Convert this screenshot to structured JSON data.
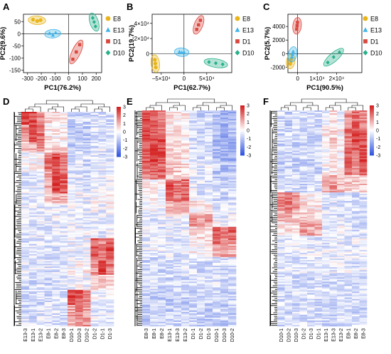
{
  "colors": {
    "E8": "#e8b418",
    "E13": "#3fb4e8",
    "D1": "#d9483f",
    "D10": "#27b08a",
    "heat_low": "#3255e0",
    "heat_mid": "#ffffff",
    "heat_high": "#d42020"
  },
  "legend": {
    "marker_icons": [
      "circle-icon",
      "triangle-icon",
      "square-icon",
      "diamond-icon"
    ]
  },
  "chart_data": [
    {
      "panel": "A",
      "type": "scatter",
      "xlabel": "PC1(76.2%)",
      "ylabel": "PC2(9.6%)",
      "xlim": [
        -330,
        240
      ],
      "ylim": [
        -160,
        80
      ],
      "xticks": [
        -300,
        -200,
        -100,
        0,
        100,
        200
      ],
      "xtick_labels": [
        "-300",
        "-200",
        "-100",
        "0",
        "100",
        "200"
      ],
      "yticks": [
        50,
        0,
        -50,
        -100,
        -150
      ],
      "ytick_labels": [
        "50",
        "0",
        "-50",
        "-100",
        "-150"
      ],
      "legend": [
        "E8",
        "E13",
        "D1",
        "D10"
      ],
      "series": [
        {
          "name": "E8",
          "marker": "circle",
          "x": [
            -260,
            -230,
            -205
          ],
          "y": [
            58,
            52,
            56
          ]
        },
        {
          "name": "E13",
          "marker": "triangle",
          "x": [
            -140,
            -115,
            -95
          ],
          "y": [
            2,
            -6,
            4
          ]
        },
        {
          "name": "D1",
          "marker": "square",
          "x": [
            30,
            55,
            80
          ],
          "y": [
            -105,
            -75,
            -45
          ]
        },
        {
          "name": "D10",
          "marker": "diamond",
          "x": [
            175,
            185,
            195
          ],
          "y": [
            65,
            48,
            30
          ]
        }
      ]
    },
    {
      "panel": "B",
      "type": "scatter",
      "xlabel": "PC1(62.7%)",
      "ylabel": "PC2(19.7%)",
      "xlim": [
        -70000,
        105000
      ],
      "ylim": [
        -25000,
        52000
      ],
      "xticks": [
        -50000,
        0,
        50000
      ],
      "xtick_labels": [
        "−5×10⁴",
        "0",
        "5×10⁴"
      ],
      "yticks": [
        40000,
        20000,
        0
      ],
      "ytick_labels": [
        "4×10⁴",
        "2×10⁴",
        "0"
      ],
      "legend": [
        "E8",
        "E13",
        "D1",
        "D10"
      ],
      "series": [
        {
          "name": "E8",
          "marker": "circle",
          "x": [
            -64000,
            -63000,
            -62000
          ],
          "y": [
            -8000,
            -13000,
            -18000
          ]
        },
        {
          "name": "E13",
          "marker": "triangle",
          "x": [
            -10000,
            -5000,
            0
          ],
          "y": [
            2500,
            1500,
            2000
          ]
        },
        {
          "name": "D1",
          "marker": "square",
          "x": [
            28000,
            32000,
            36000
          ],
          "y": [
            32000,
            38000,
            44000
          ]
        },
        {
          "name": "D10",
          "marker": "diamond",
          "x": [
            55000,
            70000,
            85000
          ],
          "y": [
            -11000,
            -12500,
            -14000
          ]
        }
      ]
    },
    {
      "panel": "C",
      "type": "scatter",
      "xlabel": "PC1(90.5%)",
      "ylabel": "PC2(5.7%)",
      "xlim": [
        -5000,
        33000
      ],
      "ylim": [
        -2800,
        5800
      ],
      "xticks": [
        0,
        10000,
        20000
      ],
      "xtick_labels": [
        "0",
        "1×10⁴",
        "2×10⁴"
      ],
      "yticks": [
        4000,
        2000,
        0,
        -2000
      ],
      "ytick_labels": [
        "4000",
        "2000",
        "0",
        "-2000"
      ],
      "legend": [
        "E8",
        "E13",
        "D1",
        "D10"
      ],
      "series": [
        {
          "name": "E8",
          "marker": "circle",
          "x": [
            -3800,
            -3600,
            -3400
          ],
          "y": [
            -1500,
            -1150,
            -800
          ]
        },
        {
          "name": "E13",
          "marker": "triangle",
          "x": [
            -2900,
            -2600,
            -2300
          ],
          "y": [
            -500,
            -100,
            300
          ]
        },
        {
          "name": "D1",
          "marker": "square",
          "x": [
            -500,
            -300,
            -100
          ],
          "y": [
            3600,
            4100,
            4600
          ]
        },
        {
          "name": "D10",
          "marker": "diamond",
          "x": [
            15500,
            18500,
            21500
          ],
          "y": [
            -1300,
            -500,
            200
          ]
        }
      ]
    },
    {
      "panel": "D",
      "type": "heatmap",
      "columns": [
        "E13-3",
        "E13-1",
        "E13-2",
        "E8-1",
        "E8-2",
        "E8-3",
        "D10-1",
        "D10-3",
        "D10-2",
        "D1-2",
        "D1-1",
        "D1-3"
      ],
      "colorbar_ticks": [
        3,
        2,
        1,
        0,
        -1,
        -2,
        -3
      ],
      "colorbar_labels": [
        "3",
        "2",
        "1",
        "0",
        "-1",
        "-2",
        "-3"
      ],
      "vmin": -3,
      "vmax": 3,
      "row_blocks": [
        {
          "h": 0.06,
          "v": [
            2.6,
            2.4,
            1.6,
            0.6,
            0.4,
            0.2,
            -0.6,
            -0.8,
            -0.7,
            -0.5,
            -0.6,
            -0.7
          ]
        },
        {
          "h": 0.08,
          "v": [
            1.4,
            2.2,
            2.0,
            0.3,
            0.2,
            0.1,
            -0.9,
            -0.9,
            -0.8,
            -0.4,
            -0.5,
            -0.5
          ]
        },
        {
          "h": 0.05,
          "v": [
            0.8,
            1.2,
            1.5,
            0.5,
            0.9,
            0.4,
            -0.8,
            -0.7,
            -0.7,
            -0.6,
            -0.4,
            -0.5
          ]
        },
        {
          "h": 0.09,
          "v": [
            -0.2,
            0.1,
            0.0,
            1.8,
            2.3,
            1.9,
            -0.6,
            -0.5,
            -0.6,
            -0.3,
            -0.4,
            -0.4
          ]
        },
        {
          "h": 0.1,
          "v": [
            -0.4,
            -0.3,
            -0.4,
            1.2,
            2.6,
            2.2,
            -0.4,
            -0.4,
            -0.5,
            -0.2,
            -0.3,
            -0.3
          ]
        },
        {
          "h": 0.05,
          "v": [
            -0.3,
            -0.3,
            -0.2,
            0.6,
            1.0,
            0.8,
            -0.3,
            -0.2,
            -0.3,
            0.1,
            0.2,
            0.1
          ]
        },
        {
          "h": 0.16,
          "v": [
            -0.4,
            -0.4,
            -0.4,
            -0.4,
            -0.3,
            -0.4,
            -0.3,
            -0.3,
            -0.3,
            -0.2,
            -0.3,
            -0.2
          ]
        },
        {
          "h": 0.1,
          "v": [
            -0.5,
            -0.5,
            -0.5,
            -0.5,
            -0.5,
            -0.4,
            -0.2,
            -0.2,
            -0.1,
            2.2,
            1.6,
            2.4
          ]
        },
        {
          "h": 0.07,
          "v": [
            -0.4,
            -0.5,
            -0.4,
            -0.5,
            -0.4,
            -0.5,
            0.0,
            0.2,
            0.1,
            1.4,
            2.6,
            1.8
          ]
        },
        {
          "h": 0.07,
          "v": [
            -0.6,
            -0.6,
            -0.5,
            -0.6,
            -0.6,
            -0.5,
            -0.2,
            -0.1,
            -0.2,
            0.4,
            0.6,
            0.5
          ]
        },
        {
          "h": 0.07,
          "v": [
            -0.6,
            -0.6,
            -0.6,
            -0.5,
            -0.5,
            -0.6,
            2.6,
            2.2,
            1.8,
            -0.2,
            -0.3,
            -0.2
          ]
        },
        {
          "h": 0.1,
          "v": [
            -0.5,
            -0.5,
            -0.5,
            -0.5,
            -0.5,
            -0.5,
            1.2,
            1.6,
            1.4,
            -0.4,
            -0.5,
            -0.4
          ]
        }
      ]
    },
    {
      "panel": "E",
      "type": "heatmap",
      "columns": [
        "E8-3",
        "E8-1",
        "E8-2",
        "E13-1",
        "E13-3",
        "E13-2",
        "D1-1",
        "D1-2",
        "D1-3",
        "D10-1",
        "D10-3",
        "D10-2"
      ],
      "colorbar_ticks": [
        3,
        2,
        1,
        0,
        -1,
        -2,
        -3
      ],
      "colorbar_labels": [
        "3",
        "2",
        "1",
        "0",
        "-1",
        "-2",
        "-3"
      ],
      "vmin": -3,
      "vmax": 3,
      "row_blocks": [
        {
          "h": 0.12,
          "v": [
            2.6,
            2.0,
            1.8,
            0.4,
            0.3,
            0.2,
            -0.6,
            -0.7,
            -0.7,
            -1.0,
            -1.2,
            -1.1
          ]
        },
        {
          "h": 0.12,
          "v": [
            2.2,
            2.6,
            2.4,
            0.6,
            0.5,
            0.3,
            -0.5,
            -0.6,
            -0.5,
            -1.2,
            -1.4,
            -1.3
          ]
        },
        {
          "h": 0.08,
          "v": [
            1.6,
            1.9,
            2.1,
            0.8,
            0.7,
            0.6,
            -0.4,
            -0.4,
            -0.3,
            -0.9,
            -1.0,
            -1.0
          ]
        },
        {
          "h": 0.1,
          "v": [
            0.1,
            0.2,
            0.0,
            2.4,
            1.8,
            2.0,
            -0.3,
            -0.4,
            -0.4,
            -0.6,
            -0.6,
            -0.7
          ]
        },
        {
          "h": 0.06,
          "v": [
            -0.2,
            -0.2,
            -0.3,
            1.0,
            1.4,
            0.9,
            0.3,
            0.2,
            0.3,
            -0.4,
            -0.5,
            -0.4
          ]
        },
        {
          "h": 0.06,
          "v": [
            -0.4,
            -0.4,
            -0.4,
            -0.2,
            -0.2,
            -0.3,
            1.8,
            1.2,
            1.4,
            -0.2,
            -0.3,
            -0.2
          ]
        },
        {
          "h": 0.08,
          "v": [
            -0.4,
            -0.4,
            -0.5,
            -0.4,
            -0.4,
            -0.4,
            0.4,
            0.5,
            0.4,
            2.2,
            1.6,
            2.0
          ]
        },
        {
          "h": 0.06,
          "v": [
            -0.3,
            -0.3,
            -0.3,
            -0.3,
            -0.4,
            -0.3,
            0.2,
            0.1,
            0.2,
            1.0,
            1.2,
            1.1
          ]
        },
        {
          "h": 0.16,
          "v": [
            -0.6,
            -0.6,
            -0.6,
            -0.6,
            -0.6,
            -0.5,
            -0.5,
            -0.6,
            -0.5,
            -0.5,
            -0.6,
            -0.5
          ]
        },
        {
          "h": 0.16,
          "v": [
            -0.8,
            -0.8,
            -0.8,
            -0.8,
            -0.8,
            -0.8,
            -0.8,
            -0.7,
            -0.8,
            -0.7,
            -0.8,
            -0.8
          ]
        }
      ]
    },
    {
      "panel": "F",
      "type": "heatmap",
      "columns": [
        "D10-1",
        "D10-2",
        "D10-3",
        "D1-2",
        "D1-3",
        "D1-1",
        "E13-1",
        "E13-3",
        "E13-2",
        "E8-1",
        "E8-2",
        "E8-3"
      ],
      "colorbar_ticks": [
        3,
        2,
        1,
        0,
        -1,
        -2,
        -3
      ],
      "colorbar_labels": [
        "3",
        "2",
        "1",
        "0",
        "-1",
        "-2",
        "-3"
      ],
      "vmin": -3,
      "vmax": 3,
      "row_blocks": [
        {
          "h": 0.08,
          "v": [
            -0.6,
            -0.7,
            -0.6,
            -0.6,
            -0.6,
            -0.6,
            -0.2,
            0.4,
            -0.2,
            1.4,
            2.0,
            1.6
          ]
        },
        {
          "h": 0.1,
          "v": [
            -0.7,
            -0.7,
            -0.7,
            -0.6,
            -0.7,
            -0.6,
            0.2,
            0.6,
            0.1,
            1.8,
            2.4,
            2.2
          ]
        },
        {
          "h": 0.12,
          "v": [
            -0.8,
            -0.8,
            -0.7,
            -0.7,
            -0.8,
            -0.7,
            0.0,
            0.2,
            0.1,
            2.2,
            1.6,
            2.4
          ]
        },
        {
          "h": 0.08,
          "v": [
            -0.6,
            -0.6,
            -0.6,
            -0.6,
            -0.6,
            -0.5,
            1.2,
            1.4,
            0.9,
            0.8,
            0.6,
            0.7
          ]
        },
        {
          "h": 0.08,
          "v": [
            1.6,
            1.8,
            1.4,
            0.3,
            0.2,
            0.3,
            -0.4,
            -0.4,
            -0.4,
            -0.6,
            -0.6,
            -0.6
          ]
        },
        {
          "h": 0.06,
          "v": [
            1.0,
            1.2,
            0.8,
            0.6,
            0.5,
            0.4,
            -0.4,
            -0.5,
            -0.4,
            -0.6,
            -0.6,
            -0.6
          ]
        },
        {
          "h": 0.06,
          "v": [
            0.2,
            0.3,
            0.2,
            1.4,
            1.1,
            1.2,
            -0.3,
            -0.3,
            -0.3,
            -0.5,
            -0.6,
            -0.5
          ]
        },
        {
          "h": 0.18,
          "v": [
            -0.4,
            -0.4,
            -0.4,
            -0.4,
            -0.3,
            -0.4,
            -0.3,
            -0.3,
            -0.3,
            -0.3,
            -0.4,
            -0.3
          ]
        },
        {
          "h": 0.24,
          "v": [
            -0.6,
            -0.6,
            -0.6,
            -0.6,
            -0.6,
            -0.6,
            -0.6,
            -0.6,
            -0.6,
            -0.6,
            -0.6,
            -0.6
          ]
        }
      ]
    }
  ]
}
